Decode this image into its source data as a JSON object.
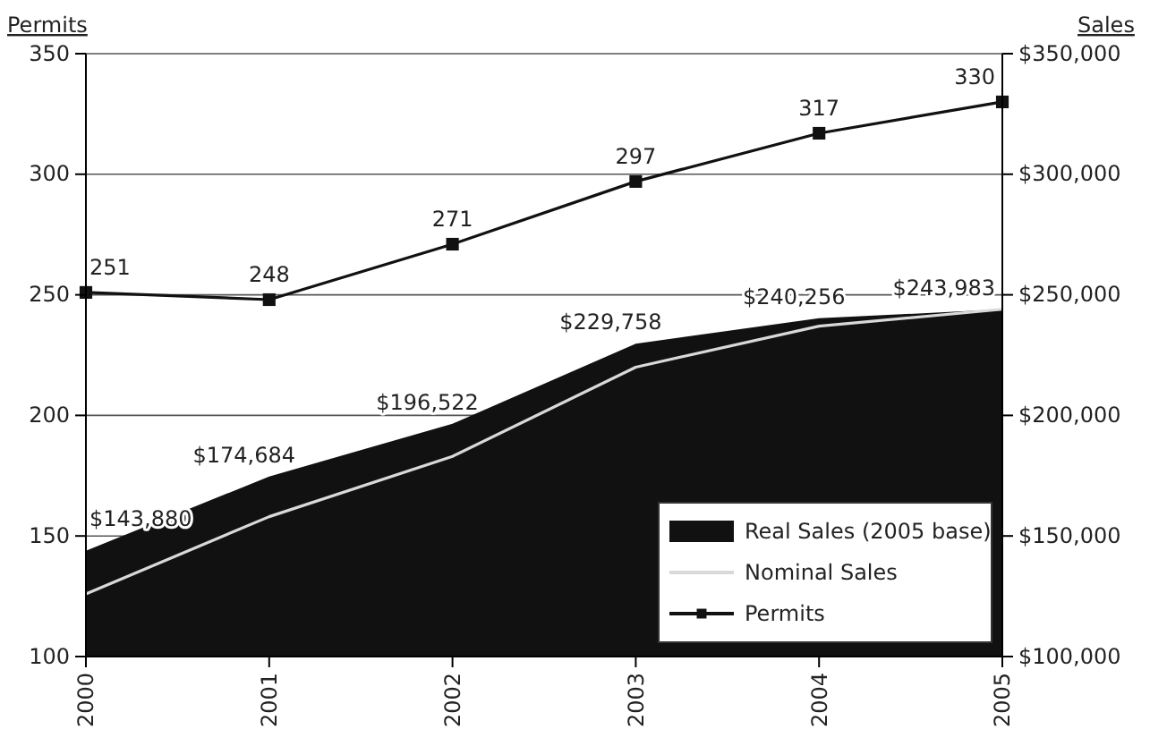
{
  "chart_data": {
    "type": "line",
    "ylabel": "Permits",
    "y2label": "Sales",
    "categories": [
      "2000",
      "2001",
      "2002",
      "2003",
      "2004",
      "2005"
    ],
    "series": [
      {
        "name": "Real Sales (2005 base)",
        "type": "area",
        "axis": "y2",
        "color": "#111111",
        "values": [
          143880,
          174684,
          196522,
          229758,
          240256,
          243983
        ],
        "value_labels": [
          "$143,880",
          "$174,684",
          "$196,522",
          "$229,758",
          "$240,256",
          "$243,983"
        ]
      },
      {
        "name": "Nominal Sales",
        "type": "line",
        "axis": "y2",
        "color": "#d9d9d9",
        "values": [
          126000,
          158000,
          183000,
          220000,
          237000,
          244000
        ]
      },
      {
        "name": "Permits",
        "type": "line",
        "color": "#111111",
        "marker": "square",
        "values": [
          251,
          248,
          271,
          297,
          317,
          330
        ],
        "value_labels": [
          "251",
          "248",
          "271",
          "297",
          "317",
          "330"
        ]
      }
    ],
    "ylim": [
      100,
      350
    ],
    "yticks": [
      100,
      150,
      200,
      250,
      300,
      350
    ],
    "y2lim": [
      100000,
      350000
    ],
    "y2ticks": [
      {
        "value": 100000,
        "label": "$100,000"
      },
      {
        "value": 150000,
        "label": "$150,000"
      },
      {
        "value": 200000,
        "label": "$200,000"
      },
      {
        "value": 250000,
        "label": "$250,000"
      },
      {
        "value": 300000,
        "label": "$300,000"
      },
      {
        "value": 350000,
        "label": "$350,000"
      }
    ],
    "grid": "y",
    "legend": "bottom right"
  }
}
